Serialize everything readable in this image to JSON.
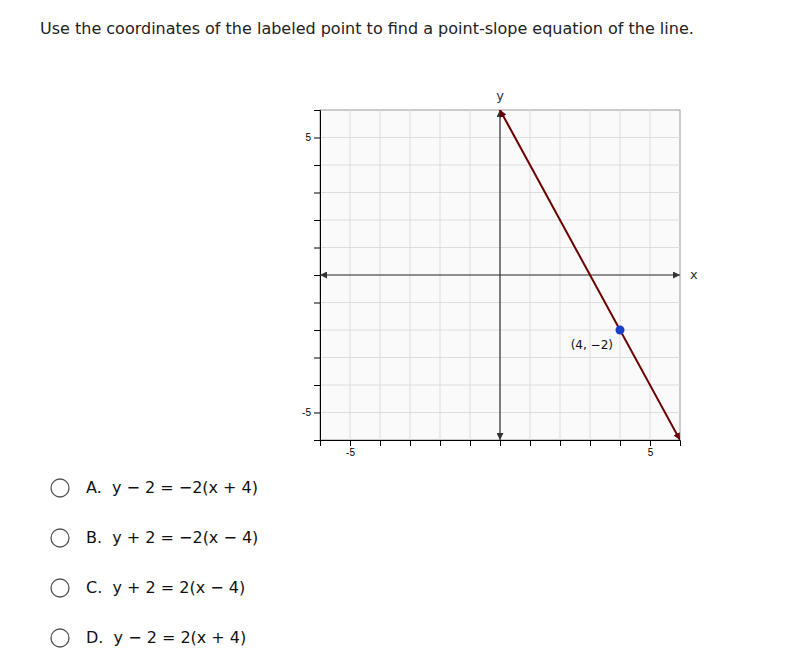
{
  "chart_data": {
    "type": "line",
    "title": "Use the coordinates of the labeled point to find a point-slope equation of the line.",
    "x_label": "x",
    "y_label": "y",
    "xlim": [
      -6,
      6
    ],
    "ylim": [
      -6,
      6
    ],
    "xticks": [
      -5,
      {
        "value": -4,
        "label": null
      },
      {
        "value": -3,
        "label": null
      },
      {
        "value": -2,
        "label": null
      },
      {
        "value": -1,
        "label": null
      },
      {
        "value": 0,
        "label": null
      },
      {
        "value": 1,
        "label": null
      },
      {
        "value": 2,
        "label": null
      },
      {
        "value": 3,
        "label": null
      },
      {
        "value": 4,
        "label": null
      },
      5
    ],
    "yticks": [
      -5,
      {
        "value": -4,
        "label": null
      },
      {
        "value": -3,
        "label": null
      },
      {
        "value": -2,
        "label": null
      },
      {
        "value": -1,
        "label": null
      },
      {
        "value": 0,
        "label": null
      },
      {
        "value": 1,
        "label": null
      },
      {
        "value": 2,
        "label": null
      },
      {
        "value": 3,
        "label": null
      },
      {
        "value": 4,
        "label": null
      },
      5
    ],
    "grid": true,
    "x": [
      0,
      6
    ],
    "values": [
      6,
      -6
    ],
    "color": "#6b0000",
    "points": [
      {
        "x": 4,
        "y": -2,
        "label": "(4, −2)",
        "color": "#1a3fc8"
      }
    ],
    "choices": [
      "A.  y − 2 = −2(x + 4)",
      "B.  y + 2 = −2(x − 4)",
      "C.  y + 2 = 2(x − 4)",
      "D.  y − 2 = 2(x + 4)"
    ]
  }
}
